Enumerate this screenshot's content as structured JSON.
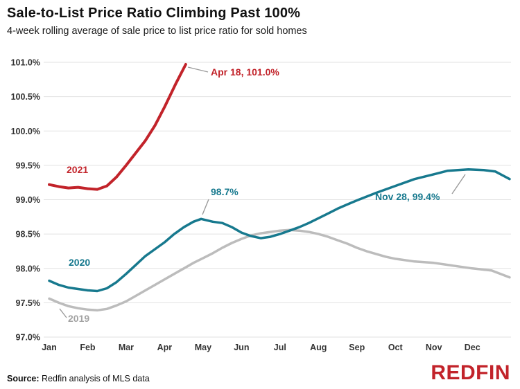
{
  "header": {
    "title": "Sale-to-List Price Ratio Climbing Past 100%",
    "subtitle": "4-week rolling average of sale price to list price ratio for sold homes"
  },
  "footer": {
    "source_label": "Source:",
    "source_text": " Redfin analysis of MLS data",
    "logo_text": "REDFIN"
  },
  "colors": {
    "red": "#c2232a",
    "teal": "#17798e",
    "gray": "#bcbcbc",
    "grid": "#e2e2e2",
    "axis_text": "#333333"
  },
  "chart_data": {
    "type": "line",
    "title": "Sale-to-List Price Ratio Climbing Past 100%",
    "subtitle": "4-week rolling average of sale price to list price ratio for sold homes",
    "xlabel": "",
    "ylabel": "",
    "ylim": [
      97.0,
      101.0
    ],
    "yticks": [
      101.0,
      100.5,
      100.0,
      99.5,
      99.0,
      98.5,
      98.0,
      97.5,
      97.0
    ],
    "ytick_labels": [
      "101.0%",
      "100.5%",
      "100.0%",
      "99.5%",
      "99.0%",
      "98.5%",
      "98.0%",
      "97.5%",
      "97.0%"
    ],
    "xtick_labels": [
      "Jan",
      "Feb",
      "Mar",
      "Apr",
      "May",
      "Jun",
      "Jul",
      "Aug",
      "Sep",
      "Oct",
      "Nov",
      "Dec"
    ],
    "x_unit": "months since Jan 1 (fractional month position)",
    "grid": "horizontal-only",
    "legend_position": "inline-labels",
    "series": [
      {
        "name": "2021",
        "color_key": "red",
        "width": 4,
        "x": [
          0,
          0.25,
          0.5,
          0.75,
          1.0,
          1.25,
          1.5,
          1.75,
          2.0,
          2.25,
          2.5,
          2.75,
          3.0,
          3.3,
          3.55
        ],
        "y": [
          99.22,
          99.19,
          99.17,
          99.18,
          99.16,
          99.15,
          99.2,
          99.33,
          99.5,
          99.68,
          99.86,
          100.08,
          100.35,
          100.7,
          100.97
        ]
      },
      {
        "name": "2020",
        "color_key": "teal",
        "width": 3.5,
        "x": [
          0,
          0.25,
          0.5,
          0.75,
          1.0,
          1.25,
          1.5,
          1.75,
          2.0,
          2.25,
          2.5,
          2.75,
          3.0,
          3.25,
          3.5,
          3.75,
          3.95,
          4.25,
          4.5,
          4.75,
          5.0,
          5.25,
          5.5,
          5.75,
          6.0,
          6.25,
          6.5,
          6.75,
          7.0,
          7.25,
          7.5,
          7.75,
          8.0,
          8.5,
          9.0,
          9.5,
          10.0,
          10.35,
          10.9,
          11.3,
          11.6,
          11.97
        ],
        "y": [
          97.82,
          97.76,
          97.72,
          97.7,
          97.68,
          97.67,
          97.71,
          97.8,
          97.92,
          98.05,
          98.18,
          98.28,
          98.38,
          98.5,
          98.6,
          98.68,
          98.72,
          98.68,
          98.66,
          98.6,
          98.52,
          98.47,
          98.44,
          98.46,
          98.5,
          98.55,
          98.6,
          98.66,
          98.73,
          98.8,
          98.87,
          98.93,
          98.99,
          99.1,
          99.2,
          99.3,
          99.37,
          99.42,
          99.44,
          99.43,
          99.41,
          99.3
        ]
      },
      {
        "name": "2019",
        "color_key": "gray",
        "width": 3.5,
        "x": [
          0,
          0.25,
          0.5,
          0.75,
          1.0,
          1.25,
          1.5,
          1.75,
          2.0,
          2.25,
          2.5,
          2.75,
          3.0,
          3.25,
          3.5,
          3.75,
          4.0,
          4.25,
          4.5,
          4.75,
          5.0,
          5.25,
          5.5,
          5.75,
          6.0,
          6.25,
          6.5,
          6.75,
          7.0,
          7.25,
          7.5,
          7.75,
          8.0,
          8.25,
          8.5,
          8.75,
          9.0,
          9.5,
          10.0,
          10.5,
          11.0,
          11.5,
          11.97
        ],
        "y": [
          97.56,
          97.5,
          97.45,
          97.42,
          97.4,
          97.39,
          97.41,
          97.46,
          97.52,
          97.6,
          97.68,
          97.76,
          97.84,
          97.92,
          98.0,
          98.08,
          98.15,
          98.22,
          98.3,
          98.37,
          98.43,
          98.48,
          98.51,
          98.53,
          98.55,
          98.56,
          98.55,
          98.53,
          98.5,
          98.46,
          98.41,
          98.36,
          98.3,
          98.25,
          98.21,
          98.17,
          98.14,
          98.1,
          98.08,
          98.04,
          98.0,
          97.97,
          97.87
        ]
      }
    ],
    "annotations": {
      "series_2021_label": "2021",
      "series_2020_label": "2020",
      "series_2019_label": "2019",
      "peak_2021": "Apr 18, 101.0%",
      "peak_spring_2020": "98.7%",
      "peak_fall_2020": "Nov 28, 99.4%"
    }
  }
}
